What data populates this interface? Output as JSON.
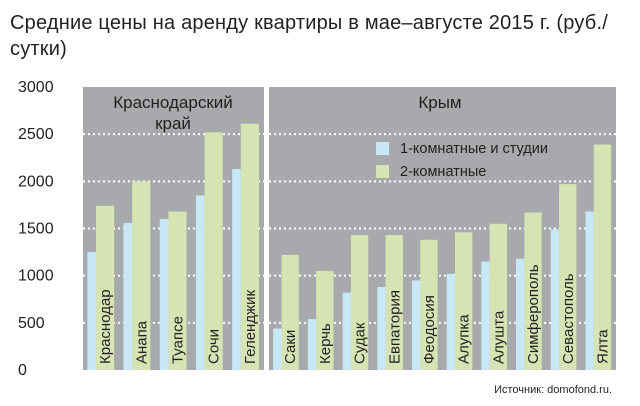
{
  "title": "Средние цены на аренду квартиры в мае–августе 2015 г. (руб./сутки)",
  "source": "Источник: domofond.ru.",
  "colors": {
    "panel": "#a7a9ac",
    "one_room": "#c8e8f8",
    "two_room": "#d6e4b4",
    "grid": "#ffffff"
  },
  "chart_data": {
    "type": "bar",
    "title": "Средние цены на аренду квартиры в мае–августе 2015 г. (руб./сутки)",
    "ylim": [
      0,
      3000
    ],
    "yticks": [
      0,
      500,
      1000,
      1500,
      2000,
      2500,
      3000
    ],
    "grid": true,
    "legend_position": "top-right",
    "groups": [
      {
        "name": "Краснодарский край",
        "categories": [
          "Краснодар",
          "Анапа",
          "Туапсе",
          "Сочи",
          "Геленджик"
        ]
      },
      {
        "name": "Крым",
        "categories": [
          "Саки",
          "Керчь",
          "Судак",
          "Евпатория",
          "Феодосия",
          "Алупка",
          "Алушта",
          "Симферополь",
          "Севастополь",
          "Ялта"
        ]
      }
    ],
    "categories": [
      "Краснодар",
      "Анапа",
      "Туапсе",
      "Сочи",
      "Геленджик",
      "Саки",
      "Керчь",
      "Судак",
      "Евпатория",
      "Феодосия",
      "Алупка",
      "Алушта",
      "Симферополь",
      "Севастополь",
      "Ялта"
    ],
    "series": [
      {
        "name": "1-комнатные и студии",
        "values": [
          1250,
          1560,
          1600,
          1850,
          2130,
          440,
          540,
          820,
          880,
          950,
          1020,
          1150,
          1180,
          1490,
          1680
        ]
      },
      {
        "name": "2-комнатные",
        "values": [
          1740,
          2000,
          1680,
          2520,
          2610,
          1220,
          1050,
          1430,
          1430,
          1380,
          1460,
          1550,
          1670,
          1970,
          2390
        ]
      }
    ]
  }
}
